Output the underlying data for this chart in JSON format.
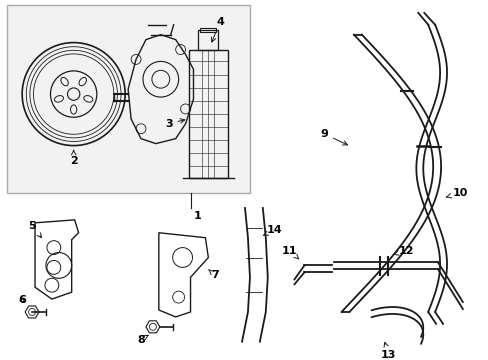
{
  "bg_color": "#ffffff",
  "line_color": "#1a1a1a",
  "box_fill": "#f0f0f0",
  "figsize": [
    4.89,
    3.6
  ],
  "dpi": 100
}
